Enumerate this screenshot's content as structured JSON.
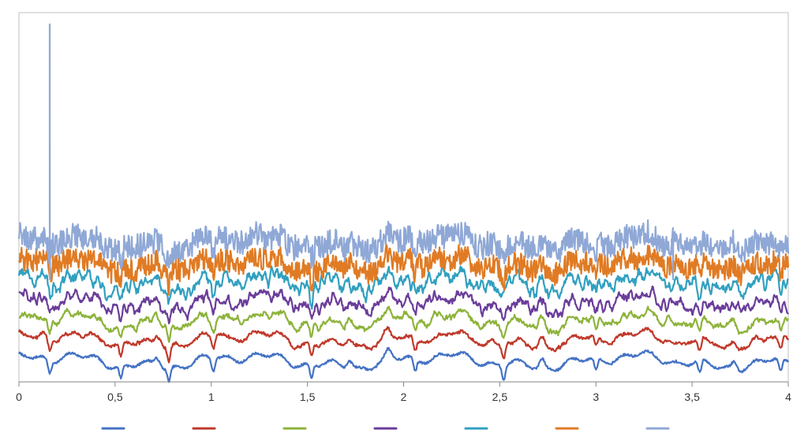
{
  "chart_data": {
    "type": "line",
    "title": "",
    "xlabel": "",
    "ylabel": "",
    "xlim": [
      0,
      4
    ],
    "x_ticks": [
      0,
      0.5,
      1,
      1.5,
      2,
      2.5,
      3,
      3.5,
      4
    ],
    "x_tick_labels": [
      "0",
      "0,5",
      "1",
      "1,5",
      "2",
      "2,5",
      "3",
      "3,5",
      "4"
    ],
    "grid": false,
    "legend": "bottom",
    "y_axis_shown": false,
    "events": {
      "dips": [
        0.16,
        0.53,
        0.78,
        1.01,
        1.52,
        2.06,
        2.52,
        3.0,
        3.54,
        3.96
      ],
      "peaks": [
        0.72,
        1.72,
        1.92,
        2.72,
        3.72
      ]
    },
    "series": [
      {
        "color": "#4472C4",
        "baseline": 0.2,
        "noise": 0.1,
        "smooth": 10
      },
      {
        "color": "#C0392B",
        "baseline": 1.65,
        "noise": 0.3,
        "smooth": 5
      },
      {
        "color": "#8DB33A",
        "baseline": 2.95,
        "noise": 0.45,
        "smooth": 3
      },
      {
        "color": "#6A3D9A",
        "baseline": 4.2,
        "noise": 0.55,
        "smooth": 2
      },
      {
        "color": "#31A0C0",
        "baseline": 5.55,
        "noise": 0.7,
        "smooth": 2
      },
      {
        "color": "#E07B24",
        "baseline": 6.8,
        "noise": 0.75,
        "smooth": 1
      },
      {
        "color": "#8FA8D6",
        "baseline": 8.3,
        "noise": 0.85,
        "smooth": 1,
        "spikes": [
          {
            "x": 0.16,
            "value": 23.2
          },
          {
            "x": 3.4,
            "value": 9.3
          }
        ]
      }
    ]
  }
}
